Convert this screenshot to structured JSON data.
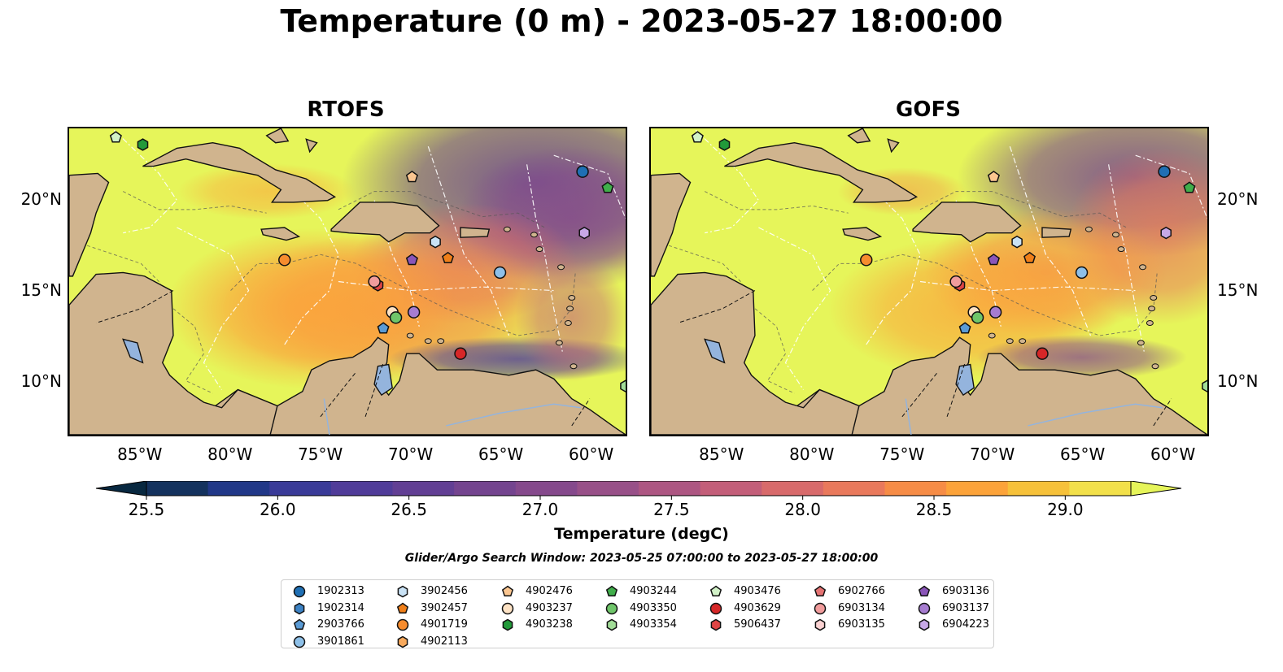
{
  "title": "Temperature (0 m) - 2023-05-27 18:00:00",
  "panels": [
    {
      "title": "RTOFS"
    },
    {
      "title": "GOFS"
    }
  ],
  "axes": {
    "x_ticks": [
      "85°W",
      "80°W",
      "75°W",
      "70°W",
      "65°W",
      "60°W"
    ],
    "y_ticks": [
      "20°N",
      "15°N",
      "10°N"
    ],
    "lon_range": [
      -89,
      -58
    ],
    "lat_range": [
      7,
      24
    ]
  },
  "colorbar": {
    "label": "Temperature (degC)",
    "ticks": [
      "25.5",
      "26.0",
      "26.5",
      "27.0",
      "27.5",
      "28.0",
      "28.5",
      "29.0"
    ],
    "min": 25.5,
    "max": 29.25,
    "step": 0.25,
    "extend": "both",
    "colors": [
      "#082840",
      "#14325e",
      "#213888",
      "#3a3b98",
      "#503c99",
      "#623f94",
      "#74448f",
      "#85498c",
      "#985088",
      "#ad5682",
      "#c35e79",
      "#d86a6b",
      "#e9795c",
      "#f68c46",
      "#fca33a",
      "#f6c13a",
      "#f2e04a",
      "#e6f55a"
    ]
  },
  "search_window": "Glider/Argo Search Window: 2023-05-25 07:00:00 to 2023-05-27 18:00:00",
  "legend": {
    "columns": [
      [
        {
          "id": "1902313",
          "marker": "circle",
          "color": "#1f6fb4"
        },
        {
          "id": "1902314",
          "marker": "hexagon",
          "color": "#3c82c4"
        },
        {
          "id": "2903766",
          "marker": "pentagon",
          "color": "#5b9bd5"
        },
        {
          "id": "3901861",
          "marker": "circle",
          "color": "#8ec0e8"
        }
      ],
      [
        {
          "id": "3902456",
          "marker": "hexagon",
          "color": "#c9e2f5"
        },
        {
          "id": "3902457",
          "marker": "pentagon",
          "color": "#f07f19"
        },
        {
          "id": "4901719",
          "marker": "circle",
          "color": "#f68c2e"
        },
        {
          "id": "4902113",
          "marker": "hexagon",
          "color": "#f8a95c"
        }
      ],
      [
        {
          "id": "4902476",
          "marker": "pentagon",
          "color": "#fbc690"
        },
        {
          "id": "4903237",
          "marker": "circle",
          "color": "#fde2c4"
        },
        {
          "id": "4903238",
          "marker": "hexagon",
          "color": "#229a3a"
        }
      ],
      [
        {
          "id": "4903244",
          "marker": "pentagon",
          "color": "#40ae4b"
        },
        {
          "id": "4903350",
          "marker": "circle",
          "color": "#6fc56a"
        },
        {
          "id": "4903354",
          "marker": "hexagon",
          "color": "#a1dc97"
        }
      ],
      [
        {
          "id": "4903476",
          "marker": "pentagon",
          "color": "#d2f2c8"
        },
        {
          "id": "4903629",
          "marker": "circle",
          "color": "#d62728"
        },
        {
          "id": "5906437",
          "marker": "hexagon",
          "color": "#e04545"
        }
      ],
      [
        {
          "id": "6902766",
          "marker": "pentagon",
          "color": "#e57373"
        },
        {
          "id": "6903134",
          "marker": "circle",
          "color": "#f19c9c"
        },
        {
          "id": "6903135",
          "marker": "hexagon",
          "color": "#fbd2d2"
        }
      ],
      [
        {
          "id": "6903136",
          "marker": "pentagon",
          "color": "#8a55b8"
        },
        {
          "id": "6903137",
          "marker": "circle",
          "color": "#a67cd0"
        },
        {
          "id": "6904223",
          "marker": "hexagon",
          "color": "#c7a8e6"
        }
      ]
    ]
  },
  "floats": [
    {
      "id": "1902313",
      "lon": -60.4,
      "lat": 21.6
    },
    {
      "id": "3901861",
      "lon": -65.0,
      "lat": 16.0
    },
    {
      "id": "2903766",
      "lon": -71.5,
      "lat": 12.9
    },
    {
      "id": "3902456",
      "lon": -68.6,
      "lat": 17.7
    },
    {
      "id": "3902457",
      "lon": -67.9,
      "lat": 16.8
    },
    {
      "id": "4901719",
      "lon": -77.0,
      "lat": 16.7
    },
    {
      "id": "4902476",
      "lon": -69.9,
      "lat": 21.3
    },
    {
      "id": "4903237",
      "lon": -71.0,
      "lat": 13.8
    },
    {
      "id": "4903238",
      "lon": -84.9,
      "lat": 23.1
    },
    {
      "id": "4903244",
      "lon": -59.0,
      "lat": 20.7
    },
    {
      "id": "4903350",
      "lon": -70.8,
      "lat": 13.5
    },
    {
      "id": "4903476",
      "lon": -86.4,
      "lat": 23.5
    },
    {
      "id": "4903629",
      "lon": -67.2,
      "lat": 11.5
    },
    {
      "id": "5906437",
      "lon": -71.8,
      "lat": 15.3
    },
    {
      "id": "6903134",
      "lon": -72.0,
      "lat": 15.5
    },
    {
      "id": "6903136",
      "lon": -69.9,
      "lat": 16.7
    },
    {
      "id": "6903137",
      "lon": -69.8,
      "lat": 13.8
    },
    {
      "id": "6904223",
      "lon": -60.3,
      "lat": 18.2
    },
    {
      "id": "4903354",
      "lon": -58.0,
      "lat": 9.7
    }
  ]
}
